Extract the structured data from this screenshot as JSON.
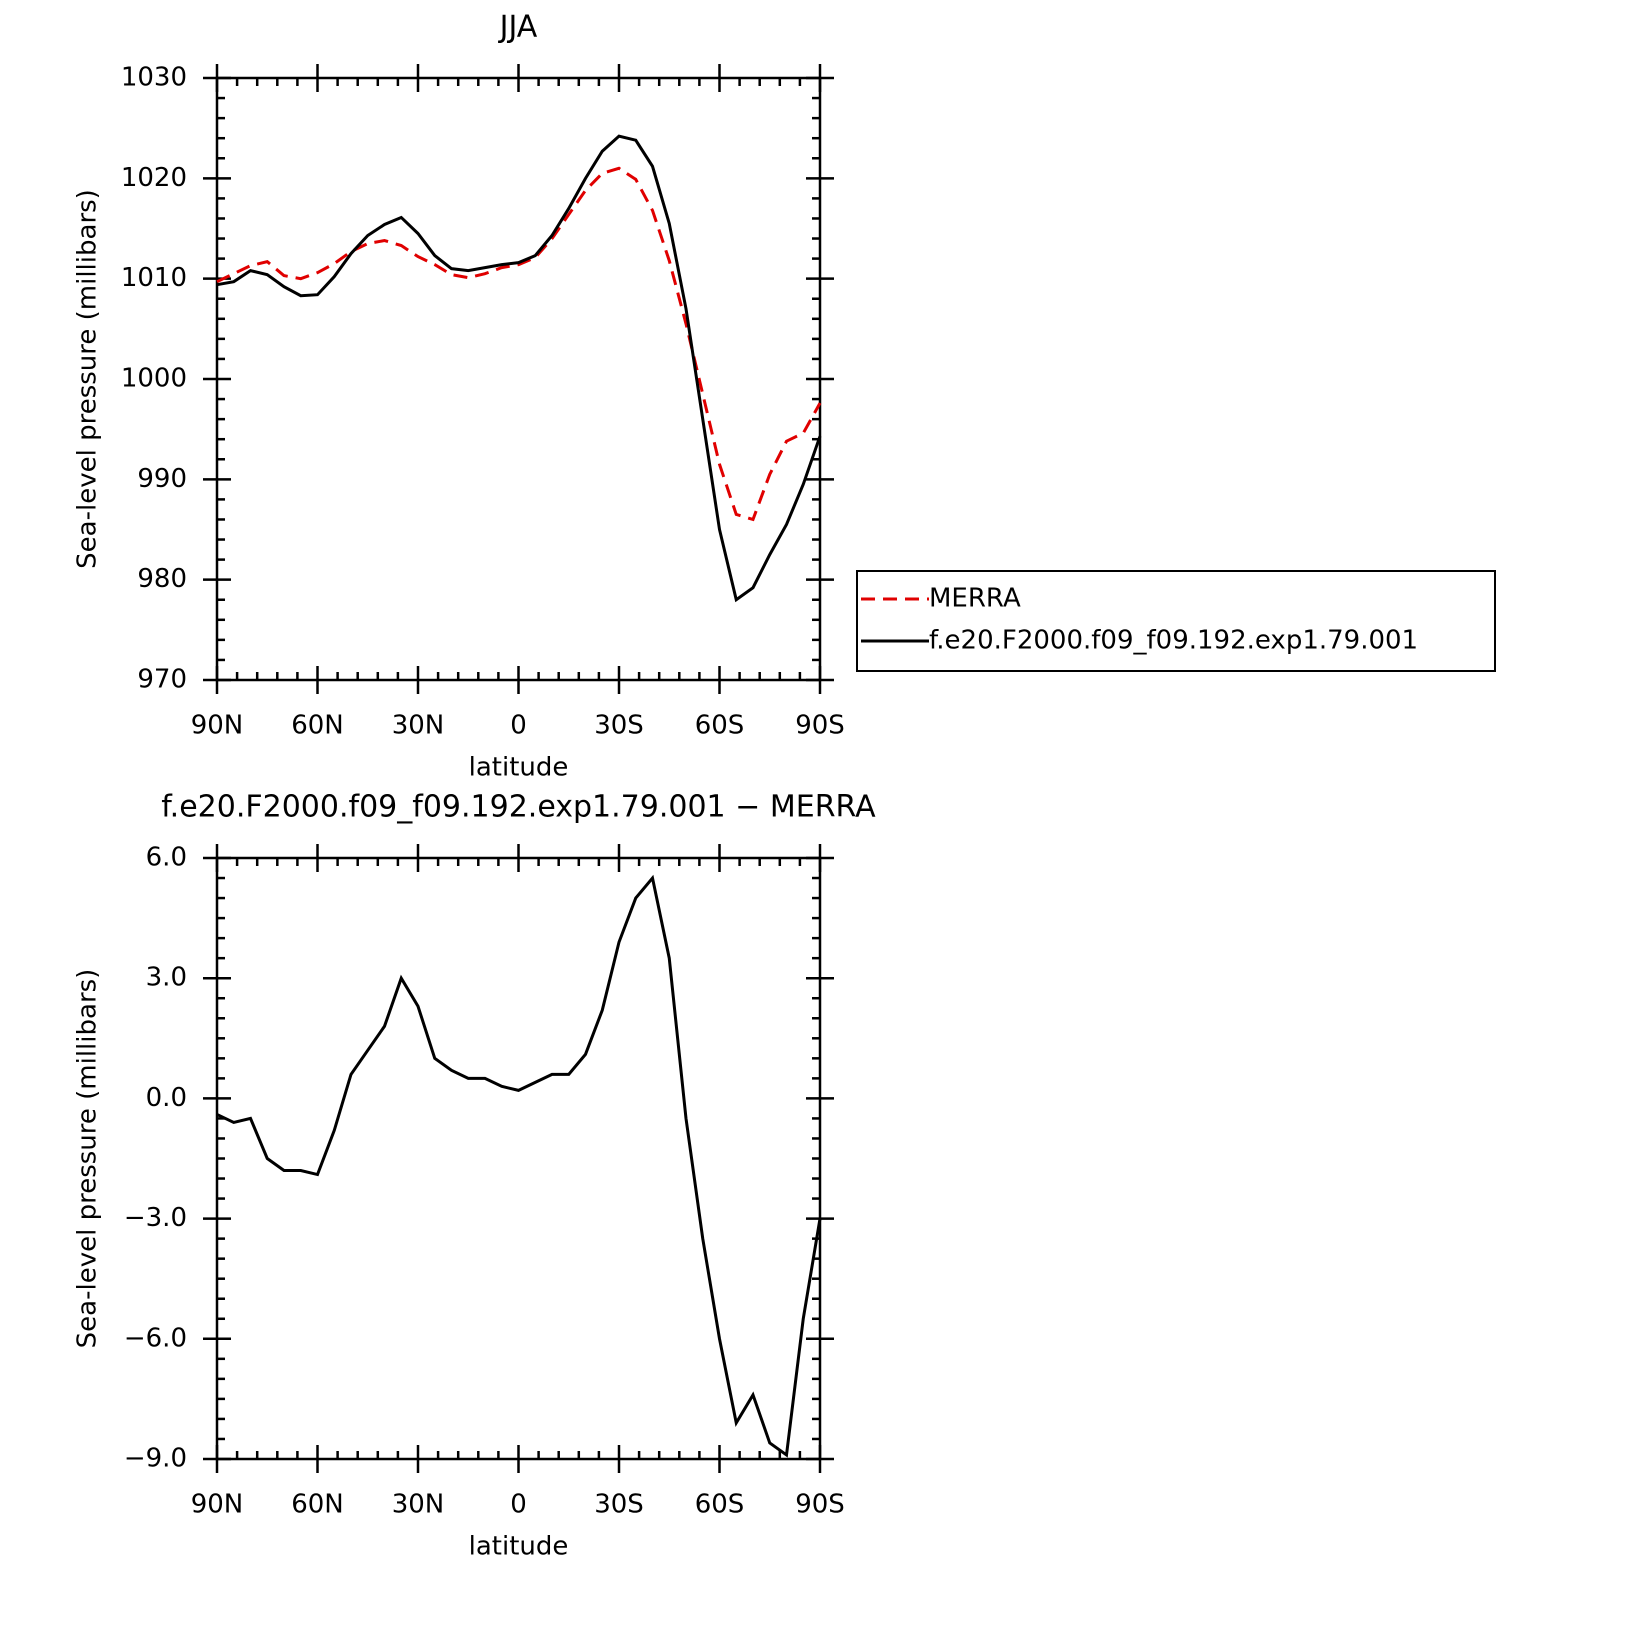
{
  "chart_data": [
    {
      "type": "line",
      "title": "JJA",
      "xlabel": "latitude",
      "ylabel": "Sea-level pressure (millibars)",
      "x": [
        90,
        85,
        80,
        75,
        70,
        65,
        60,
        55,
        50,
        45,
        40,
        35,
        30,
        25,
        20,
        15,
        10,
        5,
        0,
        -5,
        -10,
        -15,
        -20,
        -25,
        -30,
        -35,
        -40,
        -45,
        -50,
        -55,
        -60,
        -65,
        -70,
        -75,
        -80,
        -85,
        -90
      ],
      "xlim": [
        90,
        -90
      ],
      "xticks": [
        {
          "value": 90,
          "label": "90N"
        },
        {
          "value": 60,
          "label": "60N"
        },
        {
          "value": 30,
          "label": "30N"
        },
        0,
        {
          "value": -30,
          "label": "30S"
        },
        {
          "value": -60,
          "label": "60S"
        },
        {
          "value": -90,
          "label": "90S"
        }
      ],
      "ylim": [
        970,
        1030
      ],
      "yticks": [
        970,
        980,
        990,
        1000,
        1010,
        1020,
        1030
      ],
      "legend": "right",
      "series": [
        {
          "name": "MERRA",
          "color": "#e00000",
          "line_style": "dashed",
          "values": [
            1009.7,
            1010.5,
            1011.3,
            1011.7,
            1010.3,
            1010.0,
            1010.6,
            1011.5,
            1012.7,
            1013.5,
            1013.8,
            1013.3,
            1012.2,
            1011.4,
            1010.4,
            1010.1,
            1010.5,
            1011.1,
            1011.4,
            1012.1,
            1014.0,
            1016.4,
            1018.8,
            1020.5,
            1021.0,
            1019.9,
            1016.8,
            1011.8,
            1005.5,
            998.5,
            991.5,
            986.5,
            986.0,
            990.5,
            993.8,
            994.6,
            997.6
          ]
        },
        {
          "name": "f.e20.F2000.f09_f09.192.exp1.79.001",
          "color": "#000000",
          "line_style": "solid",
          "values": [
            1009.4,
            1009.7,
            1010.8,
            1010.4,
            1009.2,
            1008.3,
            1008.4,
            1010.2,
            1012.5,
            1014.3,
            1015.4,
            1016.1,
            1014.5,
            1012.3,
            1011.0,
            1010.8,
            1011.1,
            1011.4,
            1011.6,
            1012.3,
            1014.3,
            1017.0,
            1020.0,
            1022.7,
            1024.2,
            1023.8,
            1021.2,
            1015.5,
            1007.0,
            996.0,
            985.0,
            978.0,
            979.2,
            982.5,
            985.5,
            989.5,
            994.3
          ]
        }
      ]
    },
    {
      "type": "line",
      "title": "f.e20.F2000.f09_f09.192.exp1.79.001 − MERRA",
      "xlabel": "latitude",
      "ylabel": "Sea-level pressure (millibars)",
      "x": [
        90,
        85,
        80,
        75,
        70,
        65,
        60,
        55,
        50,
        45,
        40,
        35,
        30,
        25,
        20,
        15,
        10,
        5,
        0,
        -5,
        -10,
        -15,
        -20,
        -25,
        -30,
        -35,
        -40,
        -45,
        -50,
        -55,
        -60,
        -65,
        -70,
        -75,
        -80,
        -85,
        -90
      ],
      "xlim": [
        90,
        -90
      ],
      "xticks": [
        {
          "value": 90,
          "label": "90N"
        },
        {
          "value": 60,
          "label": "60N"
        },
        {
          "value": 30,
          "label": "30N"
        },
        0,
        {
          "value": -30,
          "label": "30S"
        },
        {
          "value": -60,
          "label": "60S"
        },
        {
          "value": -90,
          "label": "90S"
        }
      ],
      "ylim": [
        -9,
        6
      ],
      "yticks": [
        {
          "value": -9,
          "label": "−9.0"
        },
        {
          "value": -6,
          "label": "−6.0"
        },
        {
          "value": -3,
          "label": "−3.0"
        },
        {
          "value": 0,
          "label": "0.0"
        },
        {
          "value": 3,
          "label": "3.0"
        },
        {
          "value": 6,
          "label": "6.0"
        }
      ],
      "series": [
        {
          "color": "#000000",
          "line_style": "solid",
          "values": [
            -0.4,
            -0.6,
            -0.5,
            -1.5,
            -1.8,
            -1.8,
            -1.9,
            -0.8,
            0.6,
            1.2,
            1.8,
            3.0,
            2.3,
            1.0,
            0.7,
            0.5,
            0.5,
            0.3,
            0.2,
            0.4,
            0.6,
            0.6,
            1.1,
            2.2,
            3.9,
            5.0,
            5.5,
            3.5,
            -0.5,
            -3.5,
            -6.0,
            -8.1,
            -7.4,
            -8.6,
            -8.9,
            -5.5,
            -3.0
          ]
        }
      ]
    }
  ]
}
